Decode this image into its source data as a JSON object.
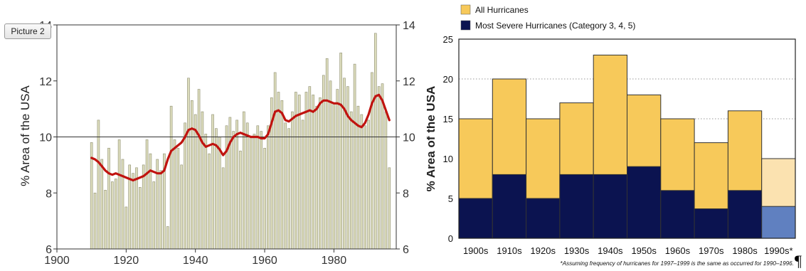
{
  "picture_tag": "Picture 2",
  "pilcrow": "¶",
  "chart_data": [
    {
      "type": "bar",
      "title": "",
      "ylabel": "% Area of the USA",
      "xlabel": "",
      "xlim": [
        1900,
        1998
      ],
      "ylim": [
        6,
        14
      ],
      "x_ticks": [
        "1900",
        "1920",
        "1940",
        "1960",
        "1980"
      ],
      "x_tick_values": [
        1900,
        1920,
        1940,
        1960,
        1980
      ],
      "y_ticks": [
        "6",
        "8",
        "10",
        "12",
        "14"
      ],
      "y_tick_values": [
        6,
        8,
        10,
        12,
        14
      ],
      "right_y_ticks": [
        "6",
        "8",
        "10",
        "12",
        "14"
      ],
      "reference_line": 10,
      "bar_color": "#dcdcbc",
      "smooth_color": "#c0130f",
      "x": [
        1910,
        1911,
        1912,
        1913,
        1914,
        1915,
        1916,
        1917,
        1918,
        1919,
        1920,
        1921,
        1922,
        1923,
        1924,
        1925,
        1926,
        1927,
        1928,
        1929,
        1930,
        1931,
        1932,
        1933,
        1934,
        1935,
        1936,
        1937,
        1938,
        1939,
        1940,
        1941,
        1942,
        1943,
        1944,
        1945,
        1946,
        1947,
        1948,
        1949,
        1950,
        1951,
        1952,
        1953,
        1954,
        1955,
        1956,
        1957,
        1958,
        1959,
        1960,
        1961,
        1962,
        1963,
        1964,
        1965,
        1966,
        1967,
        1968,
        1969,
        1970,
        1971,
        1972,
        1973,
        1974,
        1975,
        1976,
        1977,
        1978,
        1979,
        1980,
        1981,
        1982,
        1983,
        1984,
        1985,
        1986,
        1987,
        1988,
        1989,
        1990,
        1991,
        1992,
        1993,
        1994,
        1995,
        1996
      ],
      "values": [
        9.8,
        8.0,
        10.6,
        9.2,
        8.1,
        9.6,
        8.4,
        8.5,
        9.9,
        9.2,
        7.5,
        9.0,
        8.7,
        8.9,
        8.2,
        9.0,
        9.9,
        9.4,
        8.4,
        9.2,
        8.8,
        9.4,
        6.8,
        11.1,
        9.9,
        9.6,
        9.0,
        10.5,
        12.1,
        11.3,
        10.8,
        11.7,
        10.9,
        10.1,
        9.4,
        10.8,
        10.3,
        10.0,
        8.9,
        10.4,
        10.7,
        10.2,
        10.6,
        9.5,
        10.9,
        10.5,
        10.0,
        10.1,
        10.4,
        10.2,
        9.6,
        10.4,
        11.4,
        12.3,
        11.6,
        11.3,
        10.5,
        10.3,
        10.9,
        11.6,
        11.5,
        10.6,
        11.6,
        11.8,
        11.5,
        11.1,
        11.4,
        12.2,
        12.8,
        12.0,
        11.2,
        11.7,
        13.0,
        12.1,
        11.8,
        10.9,
        12.6,
        11.1,
        10.8,
        10.4,
        10.6,
        12.3,
        13.7,
        11.8,
        11.9,
        10.9,
        8.9
      ],
      "smooth": [
        9.25,
        9.2,
        9.1,
        8.95,
        8.8,
        8.7,
        8.65,
        8.7,
        8.65,
        8.6,
        8.55,
        8.5,
        8.45,
        8.5,
        8.55,
        8.6,
        8.7,
        8.8,
        8.75,
        8.7,
        8.7,
        8.8,
        9.2,
        9.5,
        9.6,
        9.7,
        9.8,
        10.0,
        10.25,
        10.3,
        10.25,
        10.05,
        9.8,
        9.65,
        9.7,
        9.75,
        9.7,
        9.55,
        9.35,
        9.5,
        9.8,
        10.0,
        10.1,
        10.15,
        10.1,
        10.05,
        10.0,
        10.0,
        10.0,
        9.95,
        9.95,
        10.1,
        10.5,
        10.9,
        10.95,
        10.85,
        10.6,
        10.55,
        10.65,
        10.75,
        10.8,
        10.85,
        10.9,
        10.95,
        10.9,
        11.0,
        11.2,
        11.3,
        11.3,
        11.25,
        11.2,
        11.2,
        11.15,
        11.0,
        10.75,
        10.6,
        10.5,
        10.4,
        10.35,
        10.5,
        10.8,
        11.2,
        11.45,
        11.5,
        11.3,
        10.95,
        10.6
      ]
    },
    {
      "type": "bar",
      "title": "",
      "ylabel": "% Area of the USA",
      "xlabel": "",
      "ylim": [
        0,
        25
      ],
      "y_ticks": [
        "0",
        "5",
        "10",
        "15",
        "20",
        "25"
      ],
      "y_tick_values": [
        0,
        5,
        10,
        15,
        20,
        25
      ],
      "categories": [
        "1900s",
        "1910s",
        "1920s",
        "1930s",
        "1940s",
        "1950s",
        "1960s",
        "1970s",
        "1980s",
        "1990s*"
      ],
      "series": [
        {
          "name": "All Hurricanes",
          "values": [
            15,
            20,
            15,
            17,
            23,
            18,
            15,
            12,
            16,
            10
          ],
          "color": "#f7c95a"
        },
        {
          "name": "Most Severe Hurricanes (Category 3, 4, 5)",
          "values": [
            5,
            8,
            5,
            8,
            8,
            9,
            6,
            3.7,
            6,
            4
          ],
          "color": "#0b1350"
        }
      ],
      "estimated_colors": {
        "All Hurricanes": "#fbe2b0",
        "Most Severe Hurricanes (Category 3, 4, 5)": "#6080c0"
      },
      "legend_position": "top-left",
      "dotted_grid": [
        15,
        20
      ],
      "footnote": "*Assuming frequency of hurricanes for 1997–1999 is the same as occurred for 1990–1996."
    }
  ]
}
